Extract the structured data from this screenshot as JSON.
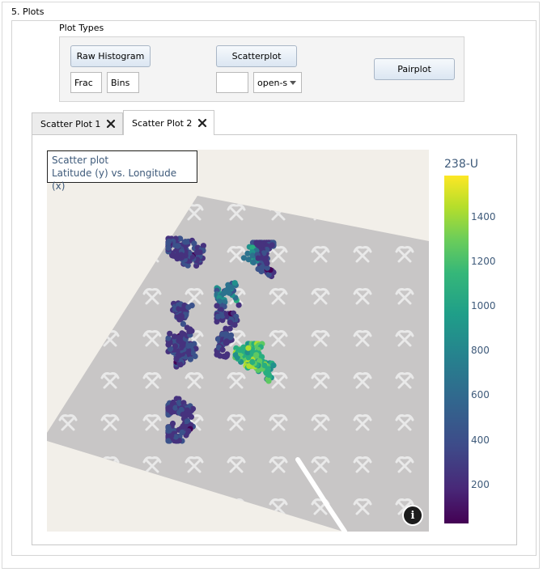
{
  "section": {
    "title": "5. Plots"
  },
  "plot_types": {
    "label": "Plot Types",
    "raw_histogram_label": "Raw Histogram",
    "scatterplot_label": "Scatterplot",
    "pairplot_label": "Pairplot",
    "frac_value": "Frac",
    "bins_value": "Bins",
    "scatter_input_value": "",
    "mode_select_value": "open-s"
  },
  "tabs": [
    {
      "label": "Scatter Plot 1",
      "active": false
    },
    {
      "label": "Scatter Plot 2",
      "active": true
    }
  ],
  "plot": {
    "title_line1": "Scatter plot",
    "title_line2": "Latitude (y) vs. Longitude (x)",
    "info_glyph": "i",
    "colors": {
      "map_bg": "#f2efe9",
      "quarry": "#c8c6c6",
      "road": "#ffffff"
    }
  },
  "colorbar": {
    "title": "238-U",
    "colorscale": "viridis",
    "range": [
      30,
      1580
    ],
    "ticks": [
      "1400",
      "1200",
      "1000",
      "800",
      "600",
      "400",
      "200"
    ]
  }
}
